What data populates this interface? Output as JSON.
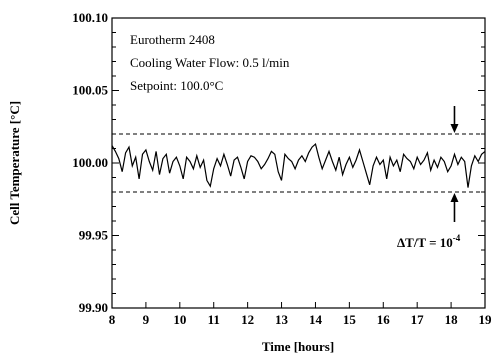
{
  "chart_data": {
    "type": "line",
    "xlabel": "Time [hours]",
    "ylabel": "Cell Temperature [°C]",
    "xlim": [
      8,
      19
    ],
    "ylim": [
      99.9,
      100.1
    ],
    "x_ticks": [
      "8",
      "9",
      "10",
      "11",
      "12",
      "13",
      "14",
      "15",
      "16",
      "17",
      "18",
      "19"
    ],
    "y_ticks": [
      "99.90",
      "99.95",
      "100.00",
      "100.05",
      "100.10"
    ],
    "annotation_lines": [
      "Eurotherm 2408",
      "Cooling Water Flow: 0.5 l/min",
      "Setpoint: 100.0°C"
    ],
    "band": {
      "upper": 100.02,
      "lower": 99.98,
      "style": "dashed"
    },
    "band_label": {
      "prefix": "ΔT/T = 10",
      "exponent": "-4"
    },
    "arrow_x": 18.1,
    "series": [
      {
        "x": [
          8.0,
          8.1,
          8.2,
          8.3,
          8.4,
          8.5,
          8.6,
          8.7,
          8.8,
          8.9,
          9.0,
          9.1,
          9.2,
          9.3,
          9.4,
          9.5,
          9.6,
          9.7,
          9.8,
          9.9,
          10.0,
          10.1,
          10.2,
          10.3,
          10.4,
          10.5,
          10.6,
          10.7,
          10.8,
          10.9,
          11.0,
          11.1,
          11.2,
          11.3,
          11.4,
          11.5,
          11.6,
          11.7,
          11.8,
          11.9,
          12.0,
          12.1,
          12.2,
          12.3,
          12.4,
          12.5,
          12.6,
          12.7,
          12.8,
          12.9,
          13.0,
          13.1,
          13.2,
          13.3,
          13.4,
          13.5,
          13.6,
          13.7,
          13.8,
          13.9,
          14.0,
          14.1,
          14.2,
          14.3,
          14.4,
          14.5,
          14.6,
          14.7,
          14.8,
          14.9,
          15.0,
          15.1,
          15.2,
          15.3,
          15.4,
          15.5,
          15.6,
          15.7,
          15.8,
          15.9,
          16.0,
          16.1,
          16.2,
          16.3,
          16.4,
          16.5,
          16.6,
          16.7,
          16.8,
          16.9,
          17.0,
          17.1,
          17.2,
          17.3,
          17.4,
          17.5,
          17.6,
          17.7,
          17.8,
          17.9,
          18.0,
          18.1,
          18.2,
          18.3,
          18.4,
          18.5,
          18.6,
          18.7,
          18.8,
          18.9,
          19.0
        ],
        "y": [
          100.012,
          100.008,
          100.003,
          99.994,
          100.007,
          100.011,
          99.998,
          100.004,
          99.989,
          100.006,
          100.009,
          100.001,
          99.995,
          100.008,
          99.992,
          100.003,
          100.006,
          99.993,
          100.001,
          100.004,
          99.998,
          99.989,
          100.004,
          100.001,
          99.996,
          100.005,
          99.997,
          100.002,
          99.988,
          99.984,
          99.996,
          100.003,
          99.998,
          100.006,
          99.999,
          99.991,
          100.002,
          100.004,
          99.997,
          99.989,
          100.001,
          100.005,
          100.004,
          100.001,
          99.996,
          99.999,
          100.003,
          100.008,
          100.006,
          99.994,
          99.988,
          100.006,
          100.003,
          100.001,
          99.996,
          100.002,
          100.005,
          100.001,
          100.007,
          100.011,
          100.013,
          100.004,
          99.996,
          100.002,
          100.008,
          100.001,
          99.995,
          100.004,
          99.992,
          99.999,
          100.004,
          99.997,
          100.002,
          100.009,
          100.001,
          99.993,
          99.985,
          99.998,
          100.004,
          99.999,
          100.002,
          99.989,
          100.004,
          99.998,
          100.002,
          99.994,
          100.006,
          100.003,
          100.001,
          99.996,
          100.004,
          99.999,
          100.002,
          100.007,
          99.995,
          100.002,
          99.997,
          100.004,
          100.001,
          99.994,
          99.998,
          100.006,
          99.999,
          100.004,
          100.001,
          99.983,
          99.998,
          100.005,
          100.001,
          100.006,
          100.008
        ]
      }
    ]
  }
}
